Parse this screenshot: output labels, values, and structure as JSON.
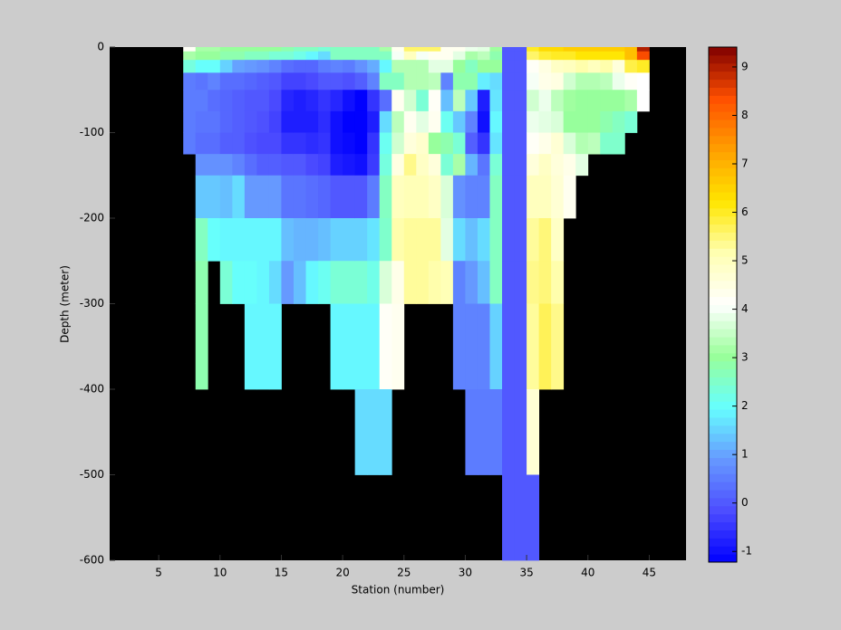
{
  "chart_data": {
    "type": "heatmap",
    "xlabel": "Station (number)",
    "ylabel": "Depth (meter)",
    "xlim": [
      1,
      48
    ],
    "xticks": [
      5,
      10,
      15,
      20,
      25,
      30,
      35,
      40,
      45
    ],
    "ylim": [
      -600,
      0
    ],
    "yticks": [
      -600,
      -500,
      -400,
      -300,
      -200,
      -100,
      0
    ],
    "clim": [
      -1.22,
      9.41
    ],
    "cticks": [
      -1,
      0,
      1,
      2,
      3,
      4,
      5,
      6,
      7,
      8,
      9
    ],
    "colormap": [
      "#0000ff",
      "#4d4dff",
      "#6699ff",
      "#66ffff",
      "#99ff99",
      "#ffffff",
      "#ffffb3",
      "#ffe600",
      "#ffa000",
      "#ff5000",
      "#800000"
    ],
    "background": "#000000",
    "x": [
      7,
      8,
      9,
      10,
      11,
      12,
      13,
      14,
      15,
      16,
      17,
      18,
      19,
      20,
      21,
      22,
      23,
      24,
      25,
      26,
      27,
      28,
      29,
      30,
      31,
      32,
      33,
      34,
      35,
      36,
      37,
      38,
      39,
      40,
      41,
      42,
      43,
      44,
      45
    ],
    "y": [
      0,
      -5,
      -15,
      -30,
      -50,
      -75,
      -100,
      -125,
      -150,
      -200,
      -250,
      -300,
      -400,
      -500,
      -600
    ],
    "z": [
      [
        4.2,
        3.2,
        2.3,
        0.5,
        0.5,
        0.5,
        0.5,
        null,
        null,
        null,
        null,
        null,
        null,
        null
      ],
      [
        3.2,
        3.0,
        2.0,
        0.4,
        0.5,
        0.4,
        0.3,
        0.8,
        1.4,
        2.6,
        2.8,
        2.8,
        null,
        null
      ],
      [
        3.2,
        3.0,
        2.0,
        0.6,
        0.3,
        0.4,
        0.3,
        0.8,
        1.4,
        2.0,
        null,
        null,
        null,
        null
      ],
      [
        3.0,
        2.8,
        1.5,
        0.3,
        0.2,
        0.2,
        0.1,
        0.8,
        1.3,
        1.9,
        2.4,
        null,
        null,
        null
      ],
      [
        3.0,
        2.8,
        1.0,
        0.3,
        0.1,
        0.1,
        0.1,
        0.6,
        1.6,
        1.9,
        2.0,
        null,
        null,
        null
      ],
      [
        3.0,
        2.6,
        0.9,
        0.2,
        0.0,
        0.0,
        -0.1,
        0.3,
        0.9,
        1.9,
        2.0,
        1.9,
        null,
        null
      ],
      [
        3.0,
        2.6,
        0.8,
        0.1,
        0.0,
        -0.1,
        -0.2,
        0.1,
        0.9,
        1.9,
        1.9,
        1.9,
        null,
        null
      ],
      [
        3.0,
        2.4,
        0.6,
        0.0,
        -0.2,
        -0.3,
        -0.2,
        0.1,
        0.9,
        1.9,
        1.6,
        1.9,
        null,
        null
      ],
      [
        2.8,
        2.4,
        0.3,
        -0.3,
        -0.7,
        -0.8,
        -0.5,
        0.0,
        0.4,
        1.3,
        0.9,
        null,
        null,
        null
      ],
      [
        2.6,
        2.2,
        0.2,
        -0.3,
        -0.8,
        -0.8,
        -0.5,
        0.0,
        0.4,
        1.2,
        1.3,
        null,
        null,
        null
      ],
      [
        2.6,
        1.9,
        0.2,
        -0.2,
        -0.7,
        -0.8,
        -0.6,
        -0.2,
        0.3,
        1.2,
        1.9,
        null,
        null,
        null
      ],
      [
        2.4,
        1.6,
        0.5,
        0.0,
        -0.5,
        -0.6,
        -0.5,
        -0.3,
        0.2,
        1.3,
        2.1,
        null,
        null,
        null
      ],
      [
        2.6,
        2.6,
        0.6,
        0.0,
        -0.7,
        -1.0,
        -1.0,
        -0.8,
        0.0,
        1.5,
        2.4,
        1.9,
        null,
        null
      ],
      [
        2.6,
        2.6,
        0.5,
        -0.1,
        -1.0,
        -1.2,
        -1.1,
        -0.9,
        0.0,
        1.5,
        2.4,
        1.9,
        null,
        null
      ],
      [
        2.6,
        2.6,
        0.8,
        0.1,
        -1.2,
        -1.2,
        -1.2,
        -1.0,
        0.0,
        1.5,
        2.4,
        1.9,
        1.6,
        null
      ],
      [
        2.6,
        2.6,
        1.1,
        0.6,
        -0.5,
        -0.8,
        -0.5,
        -0.4,
        0.5,
        1.7,
        2.2,
        1.9,
        1.6,
        null
      ],
      [
        3.2,
        2.6,
        1.9,
        2.6,
        0.3,
        1.6,
        2.1,
        2.3,
        2.6,
        2.5,
        3.7,
        4.2,
        1.6,
        null
      ],
      [
        4.3,
        4.0,
        3.3,
        2.6,
        4.3,
        3.4,
        3.6,
        4.5,
        5.0,
        5.2,
        4.4,
        4.3,
        null,
        null
      ],
      [
        5.6,
        5.0,
        3.3,
        3.3,
        3.6,
        4.3,
        4.6,
        5.4,
        5.1,
        5.3,
        5.3,
        null,
        null,
        null
      ],
      [
        5.6,
        4.0,
        3.3,
        3.3,
        2.4,
        3.8,
        4.8,
        4.9,
        5.1,
        5.3,
        5.3,
        null,
        null,
        null
      ],
      [
        5.6,
        4.3,
        3.8,
        3.4,
        4.2,
        4.3,
        3.0,
        4.6,
        4.9,
        5.3,
        5.2,
        null,
        null,
        null
      ],
      [
        4.3,
        4.3,
        3.8,
        0.6,
        1.3,
        2.1,
        2.8,
        2.4,
        3.7,
        3.8,
        5.1,
        null,
        null,
        null
      ],
      [
        4.3,
        3.8,
        3.0,
        2.8,
        3.4,
        1.4,
        2.4,
        3.2,
        0.8,
        1.6,
        0.6,
        0.6,
        null,
        null
      ],
      [
        3.9,
        3.2,
        2.6,
        2.8,
        1.4,
        0.6,
        0.1,
        1.2,
        0.6,
        1.3,
        0.9,
        0.6,
        0.5,
        null
      ],
      [
        3.8,
        3.4,
        3.0,
        1.8,
        -0.8,
        -1.0,
        -0.5,
        0.4,
        0.6,
        1.6,
        1.3,
        0.6,
        0.5,
        null
      ],
      [
        3.1,
        2.8,
        3.0,
        1.6,
        1.7,
        1.9,
        1.7,
        2.4,
        2.6,
        2.6,
        2.6,
        1.5,
        0.5,
        null
      ],
      [
        0,
        0,
        0,
        0,
        0,
        0,
        0,
        0,
        0,
        0,
        0,
        0,
        0,
        0
      ],
      [
        0,
        0,
        0,
        0,
        0,
        0,
        0,
        0,
        0,
        0,
        0,
        0,
        0,
        0
      ],
      [
        6.0,
        5.6,
        4.2,
        4.0,
        3.6,
        3.9,
        4.2,
        4.6,
        5.0,
        5.3,
        5.4,
        5.3,
        4.7,
        0
      ],
      [
        6.4,
        5.9,
        4.5,
        4.4,
        3.9,
        3.8,
        4.4,
        4.9,
        5.0,
        5.5,
        5.5,
        5.7,
        null,
        null
      ],
      [
        6.4,
        6.0,
        4.9,
        4.5,
        3.4,
        3.7,
        4.7,
        4.6,
        4.7,
        4.9,
        5.2,
        5.4,
        null,
        null
      ],
      [
        6.6,
        6.0,
        5.0,
        3.6,
        3.1,
        3.0,
        3.7,
        4.4,
        4.3,
        null,
        null,
        null,
        null,
        null
      ],
      [
        6.6,
        6.2,
        5.2,
        3.3,
        3.0,
        3.0,
        3.3,
        3.8,
        null,
        null,
        null,
        null,
        null,
        null
      ],
      [
        6.6,
        6.2,
        5.0,
        3.3,
        3.0,
        3.0,
        3.4,
        null,
        null,
        null,
        null,
        null,
        null,
        null
      ],
      [
        6.6,
        6.2,
        5.2,
        3.4,
        3.0,
        2.8,
        2.5,
        null,
        null,
        null,
        null,
        null,
        null,
        null
      ],
      [
        6.6,
        6.2,
        4.6,
        3.9,
        3.0,
        2.6,
        2.5,
        null,
        null,
        null,
        null,
        null,
        null,
        null
      ],
      [
        6.8,
        6.8,
        5.8,
        4.2,
        3.2,
        2.4,
        null,
        null,
        null,
        null,
        null,
        null,
        null,
        null
      ],
      [
        9.0,
        8.4,
        6.0,
        4.1,
        4.1,
        null,
        null,
        null,
        null,
        null,
        null,
        null,
        null,
        null
      ]
    ]
  }
}
